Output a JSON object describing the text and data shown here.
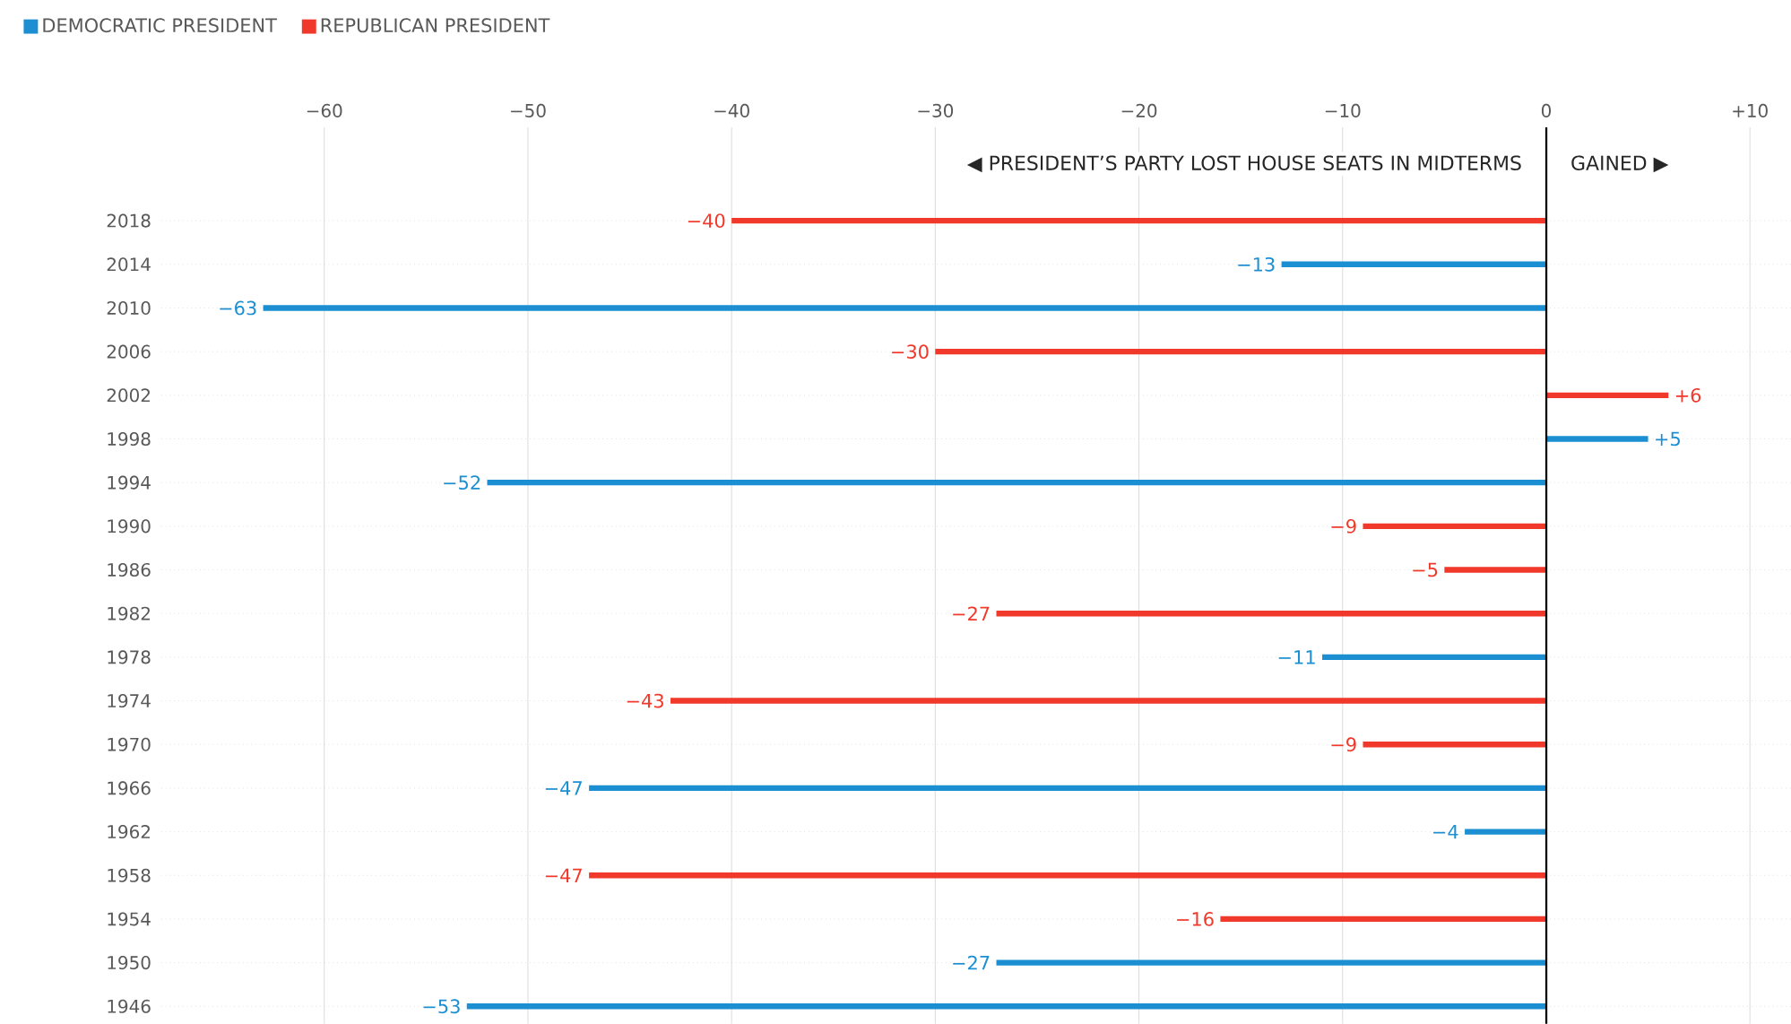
{
  "chart_data": {
    "type": "bar",
    "orientation": "horizontal",
    "categories": [
      "2018",
      "2014",
      "2010",
      "2006",
      "2002",
      "1998",
      "1994",
      "1990",
      "1986",
      "1982",
      "1978",
      "1974",
      "1970",
      "1966",
      "1962",
      "1958",
      "1954",
      "1950",
      "1946"
    ],
    "series": [
      {
        "name": "DEMOCRATIC PRESIDENT",
        "color": "#1b8fd2",
        "values": [
          null,
          -13,
          -63,
          null,
          null,
          5,
          -52,
          null,
          null,
          null,
          -11,
          null,
          null,
          -47,
          -4,
          null,
          null,
          -27,
          -53
        ],
        "value_labels": [
          null,
          "−13",
          "−63",
          null,
          null,
          "+5",
          "−52",
          null,
          null,
          null,
          "−11",
          null,
          null,
          "−47",
          "−4",
          null,
          null,
          "−27",
          "−53"
        ]
      },
      {
        "name": "REPUBLICAN PRESIDENT",
        "color": "#f0392b",
        "values": [
          -40,
          null,
          null,
          -30,
          6,
          null,
          null,
          -9,
          -5,
          -27,
          null,
          -43,
          -9,
          null,
          null,
          -47,
          -16,
          null,
          null
        ],
        "value_labels": [
          "−40",
          null,
          null,
          "−30",
          "+6",
          null,
          null,
          "−9",
          "−5",
          "−27",
          null,
          "−43",
          "−9",
          null,
          null,
          "−47",
          "−16",
          null,
          null
        ]
      }
    ],
    "xlim": [
      -68,
      12
    ],
    "xticks": [
      {
        "value": -60,
        "label": "−60"
      },
      {
        "value": -50,
        "label": "−50"
      },
      {
        "value": -40,
        "label": "−40"
      },
      {
        "value": -30,
        "label": "−30"
      },
      {
        "value": -20,
        "label": "−20"
      },
      {
        "value": -10,
        "label": "−10"
      },
      0,
      {
        "value": 10,
        "label": "+10"
      }
    ],
    "ref_lines": [
      {
        "axis": "x",
        "value": 0,
        "color": "#000000"
      }
    ],
    "annotations": [
      "◀  PRESIDENT’S PARTY LOST HOUSE SEATS IN MIDTERMS",
      "GAINED  ▶"
    ],
    "grid": true,
    "legend": "top left"
  }
}
